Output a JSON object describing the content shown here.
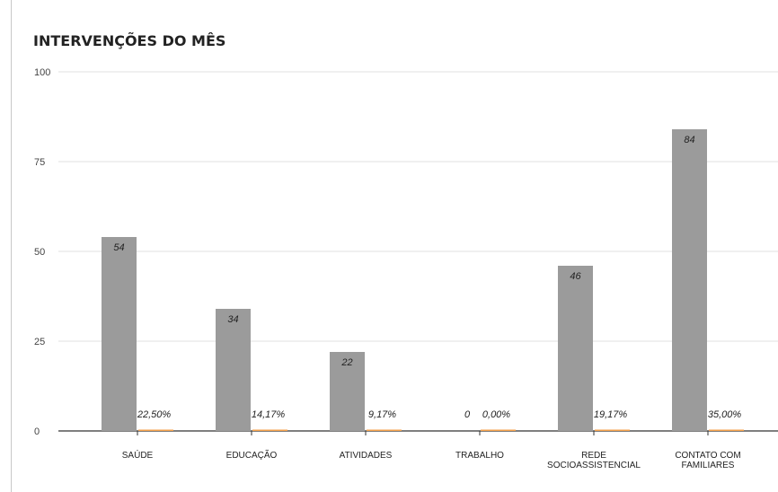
{
  "chart_data": {
    "type": "bar",
    "title": "INTERVENÇÕES DO MÊS",
    "xlabel": "",
    "ylabel": "",
    "ylim": [
      0,
      100
    ],
    "yticks": [
      "0",
      "25",
      "50",
      "75",
      "100"
    ],
    "grid": true,
    "categories": [
      "SAÚDE",
      "EDUCAÇÃO",
      "ATIVIDADES",
      "TRABALHO",
      "REDE SOCIOASSISTENCIAL",
      "CONTATO COM FAMILIARES"
    ],
    "category_lines": [
      [
        "SAÚDE"
      ],
      [
        "EDUCAÇÃO"
      ],
      [
        "ATIVIDADES"
      ],
      [
        "TRABALHO"
      ],
      [
        "REDE",
        "SOCIOASSISTENCIAL"
      ],
      [
        "CONTATO COM",
        "FAMILIARES"
      ]
    ],
    "series": [
      {
        "values": [
          54,
          34,
          22,
          0,
          46,
          84
        ],
        "labels": [
          "54",
          "34",
          "22",
          "0",
          "46",
          "84"
        ],
        "color": "#9b9b9b"
      },
      {
        "values": [
          22.5,
          14.17,
          9.17,
          0,
          19.17,
          35.0
        ],
        "labels": [
          "22,50%",
          "14,17%",
          "9,17%",
          "0,00%",
          "19,17%",
          "35,00%"
        ],
        "color": "#f4a24c"
      }
    ]
  }
}
